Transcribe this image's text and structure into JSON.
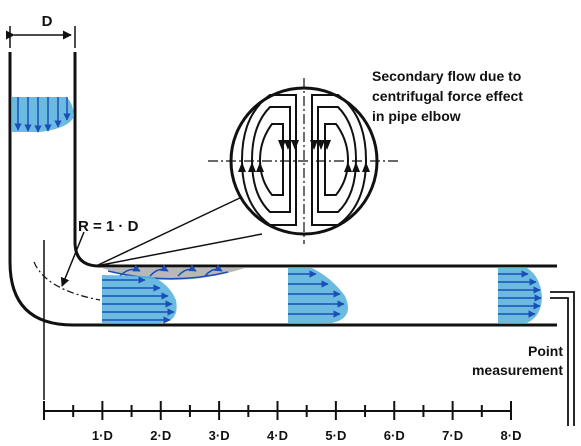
{
  "labels": {
    "diameter": "D",
    "radius": "R = 1 · D",
    "secondary_flow_line1": "Secondary flow due to",
    "secondary_flow_line2": "centrifugal force effect",
    "secondary_flow_line3": "in pipe elbow",
    "point_line1": "Point",
    "point_line2": "measurement"
  },
  "scale": {
    "ticks": [
      "1·D",
      "2·D",
      "3·D",
      "4·D",
      "5·D",
      "6·D",
      "7·D",
      "8·D"
    ]
  },
  "colors": {
    "profile_fill": "#5ab4dc",
    "arrow": "#1b4fb8",
    "separation_fill": "#b8b8b8",
    "line": "#111111"
  }
}
